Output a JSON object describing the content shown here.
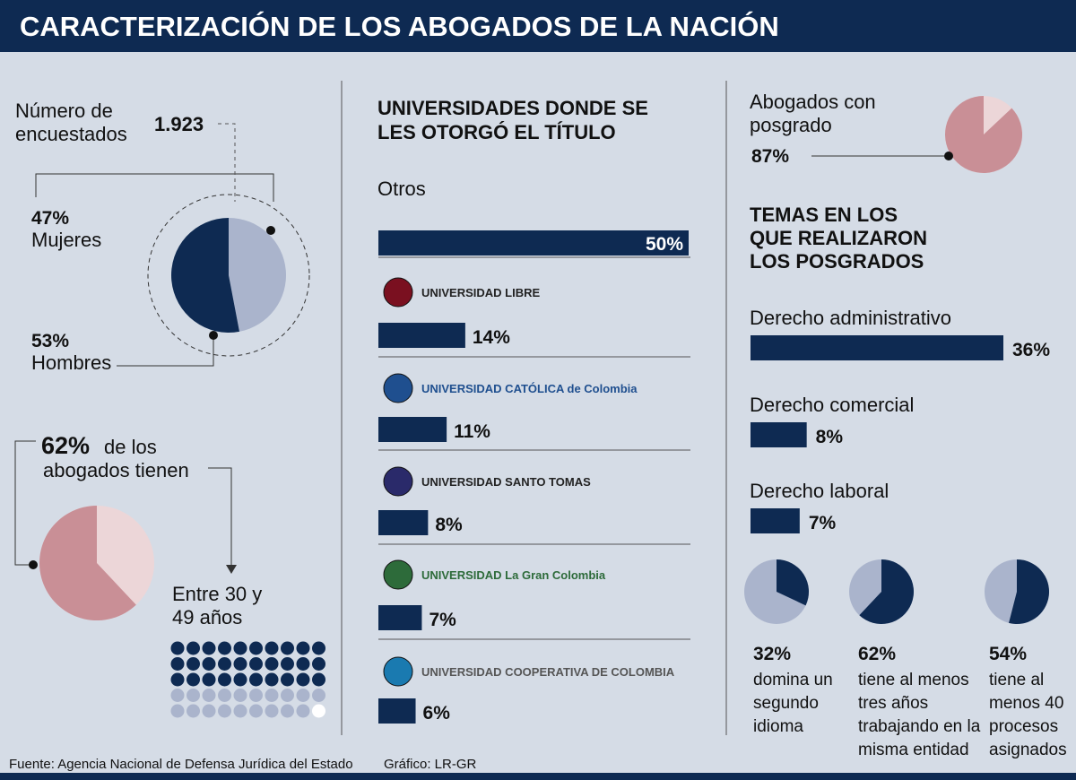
{
  "title": "CARACTERIZACIÓN DE LOS ABOGADOS DE LA NACIÓN",
  "source": "Fuente: Agencia Nacional de Defensa Jurídica del Estado",
  "credit": "Gráfico: LR-GR",
  "chart_data": [
    {
      "type": "pie",
      "title": "Número de encuestados",
      "total": 1923,
      "total_label": "1.923",
      "categories": [
        "Mujeres",
        "Hombres"
      ],
      "values": [
        47,
        53
      ],
      "value_labels": [
        "47%",
        "53%"
      ],
      "colors": [
        "#aab4cc",
        "#0e2a52"
      ]
    },
    {
      "type": "pie",
      "title": "de los abogados tienen",
      "categories": [
        "Entre 30 y 49 años"
      ],
      "values": [
        62
      ],
      "value_labels": [
        "62%"
      ],
      "colors": [
        "#c98f96"
      ],
      "rest_color": "#ecd6d8",
      "direction": "ccw"
    },
    {
      "type": "bar",
      "title": "UNIVERSIDADES DONDE SE LES OTORGÓ EL TÍTULO",
      "categories": [
        "Otros",
        "UNIVERSIDAD LIBRE",
        "UNIVERSIDAD CATÓLICA de Colombia",
        "UNIVERSIDAD SANTO TOMAS",
        "UNIVERSIDAD La Gran Colombia",
        "UNIVERSIDAD COOPERATIVA DE COLOMBIA"
      ],
      "values": [
        50,
        14,
        11,
        8,
        7,
        6
      ],
      "value_labels": [
        "50%",
        "14%",
        "11%",
        "8%",
        "7%",
        "6%"
      ],
      "color": "#0e2a52",
      "xlim": [
        0,
        50
      ]
    },
    {
      "type": "pie",
      "title": "Abogados con posgrado",
      "values": [
        87
      ],
      "value_labels": [
        "87%"
      ],
      "colors": [
        "#c98f96"
      ],
      "rest_color": "#ecd6d8",
      "direction": "ccw"
    },
    {
      "type": "bar",
      "title": "TEMAS EN LOS QUE REALIZARON LOS POSGRADOS",
      "categories": [
        "Derecho administrativo",
        "Derecho comercial",
        "Derecho laboral"
      ],
      "values": [
        36,
        8,
        7
      ],
      "value_labels": [
        "36%",
        "8%",
        "7%"
      ],
      "color": "#0e2a52",
      "xlim": [
        0,
        36
      ]
    },
    {
      "type": "pie",
      "values": [
        32
      ],
      "value_labels": [
        "32%"
      ],
      "caption": [
        "domina un",
        "segundo",
        "idioma"
      ],
      "colors": [
        "#0e2a52"
      ],
      "rest_color": "#aab4cc",
      "direction": "cw"
    },
    {
      "type": "pie",
      "values": [
        62
      ],
      "value_labels": [
        "62%"
      ],
      "caption": [
        "tiene al menos",
        "tres años",
        "trabajando en la",
        "misma entidad"
      ],
      "colors": [
        "#0e2a52"
      ],
      "rest_color": "#aab4cc",
      "direction": "cw"
    },
    {
      "type": "pie",
      "values": [
        54
      ],
      "value_labels": [
        "54%"
      ],
      "caption": [
        "tiene al",
        "menos 40",
        "procesos",
        "asignados"
      ],
      "colors": [
        "#0e2a52"
      ],
      "rest_color": "#aab4cc",
      "direction": "cw"
    }
  ]
}
